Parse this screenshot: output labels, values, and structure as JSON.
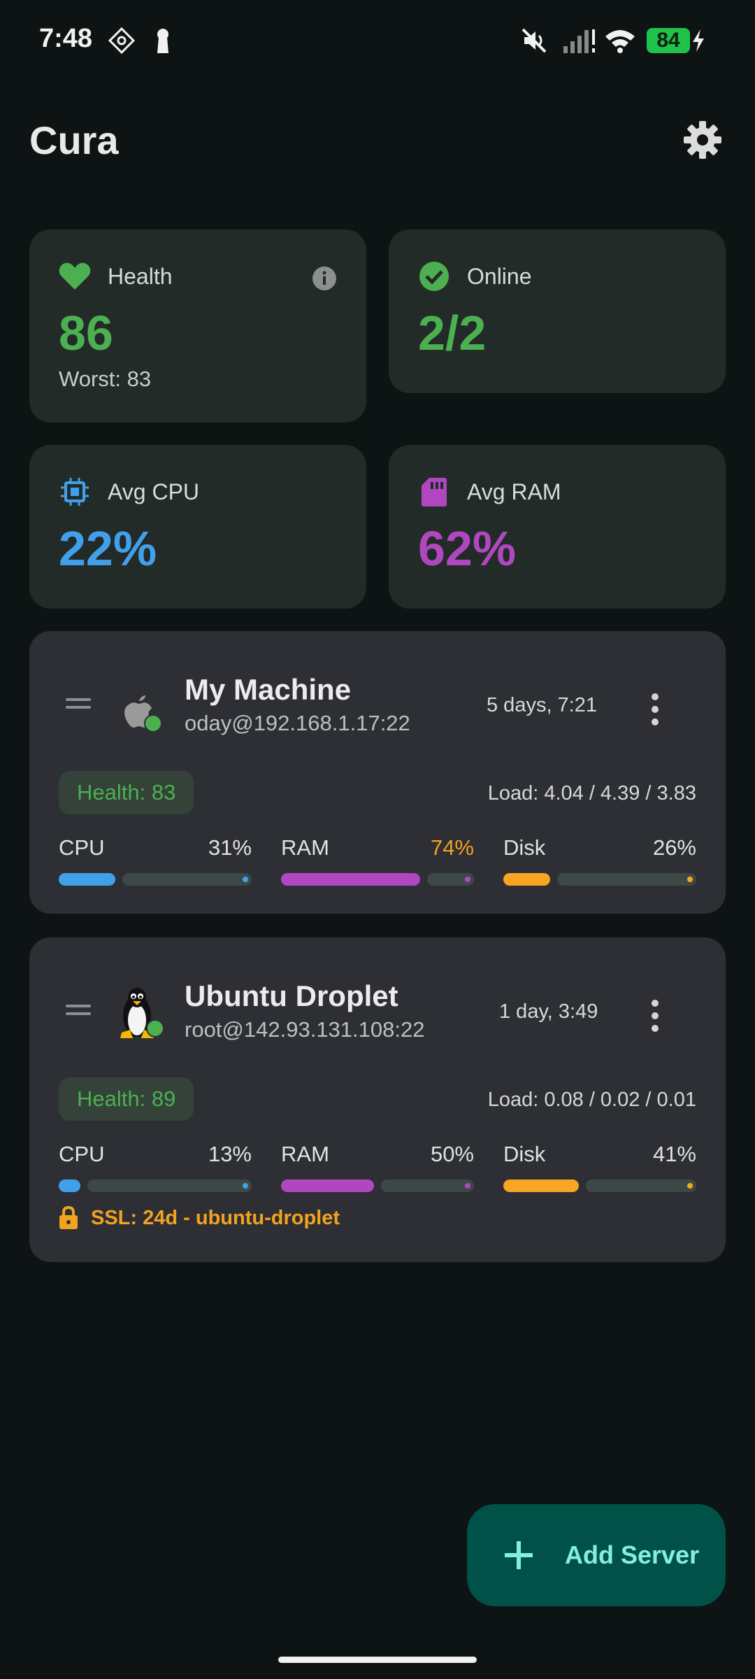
{
  "status_bar": {
    "time": "7:48",
    "battery": "84",
    "icons": [
      "sync-icon",
      "keyhole-icon",
      "mute-icon",
      "signal-icon",
      "wifi-icon",
      "charging-icon"
    ]
  },
  "app": {
    "title": "Cura",
    "settings_icon": "gear-icon"
  },
  "stats": {
    "health": {
      "label": "Health",
      "value": "86",
      "sub": "Worst: 83",
      "color": "#4cb050"
    },
    "online": {
      "label": "Online",
      "value": "2/2",
      "color": "#4cb050"
    },
    "cpu": {
      "label": "Avg CPU",
      "value": "22%",
      "color": "#41a0ea"
    },
    "ram": {
      "label": "Avg RAM",
      "value": "62%",
      "color": "#b047c0"
    }
  },
  "servers": [
    {
      "name": "My Machine",
      "address": "oday@192.168.1.17:22",
      "uptime": "5 days,  7:21",
      "health": "Health: 83",
      "load": "Load: 4.04 / 4.39 / 3.83",
      "os_icon": "apple-icon",
      "metrics": [
        {
          "label": "CPU",
          "value": "31%",
          "fraction": 0.31,
          "color": "#41a0ea"
        },
        {
          "label": "RAM",
          "value": "74%",
          "fraction": 0.74,
          "color": "#b047c0",
          "value_color": "#f2a31e"
        },
        {
          "label": "Disk",
          "value": "26%",
          "fraction": 0.26,
          "color": "#f6a623"
        }
      ]
    },
    {
      "name": "Ubuntu Droplet",
      "address": "root@142.93.131.108:22",
      "uptime": "1 day,  3:49",
      "health": "Health: 89",
      "load": "Load: 0.08 / 0.02 / 0.01",
      "os_icon": "linux-penguin-icon",
      "metrics": [
        {
          "label": "CPU",
          "value": "13%",
          "fraction": 0.13,
          "color": "#41a0ea"
        },
        {
          "label": "RAM",
          "value": "50%",
          "fraction": 0.5,
          "color": "#b047c0"
        },
        {
          "label": "Disk",
          "value": "41%",
          "fraction": 0.41,
          "color": "#f6a623"
        }
      ],
      "ssl": "SSL: 24d - ubuntu-droplet"
    }
  ],
  "fab": {
    "label": "Add Server"
  }
}
